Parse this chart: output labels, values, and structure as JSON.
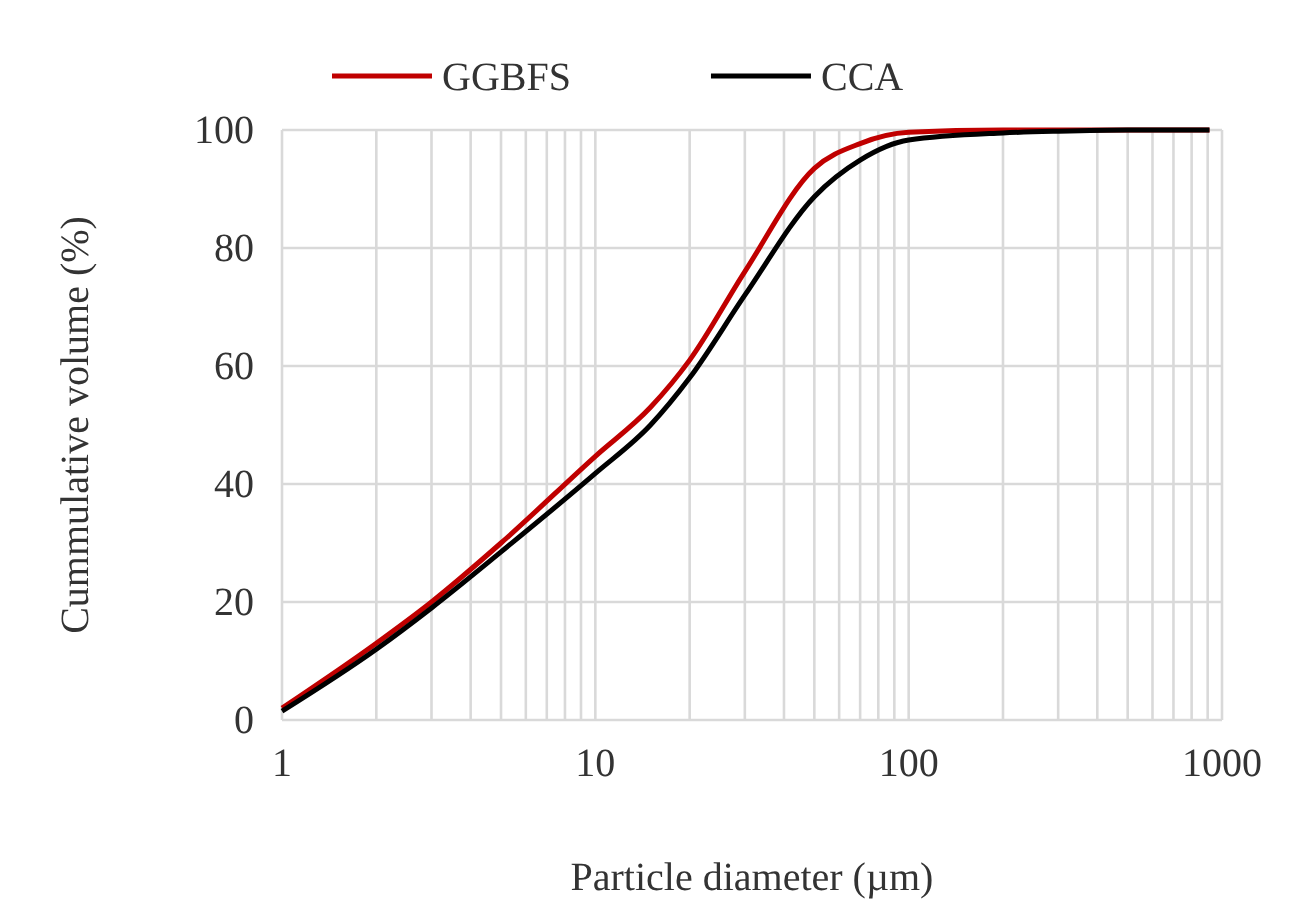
{
  "chart_data": {
    "type": "line",
    "xlabel": "Particle diameter (µm)",
    "ylabel": "Cummulative volume (%)",
    "xlim": [
      1,
      1000
    ],
    "xticks": [
      1,
      10,
      100,
      1000
    ],
    "ylim": [
      0,
      100
    ],
    "yticks": [
      0,
      20,
      40,
      60,
      80,
      100
    ],
    "log": "x",
    "grid": true,
    "legend": "top",
    "marker": "none",
    "line_style": "solid",
    "series": [
      {
        "name": "GGBFS",
        "color": "#c00000",
        "x": [
          1,
          2,
          3,
          5,
          10,
          15,
          20,
          30,
          50,
          70,
          100,
          200,
          300,
          500,
          912
        ],
        "values": [
          2,
          13,
          20,
          30,
          44.7,
          53,
          61,
          76,
          93.5,
          97.7,
          99.6,
          100,
          100,
          100,
          100
        ]
      },
      {
        "name": "CCA",
        "color": "#000000",
        "x": [
          1,
          2,
          3,
          5,
          10,
          15,
          20,
          30,
          50,
          70,
          100,
          200,
          300,
          500,
          912
        ],
        "values": [
          1.5,
          12,
          19,
          28.5,
          41.8,
          50,
          58,
          72,
          88.7,
          94.9,
          98.3,
          99.5,
          99.8,
          100,
          100
        ]
      }
    ]
  }
}
